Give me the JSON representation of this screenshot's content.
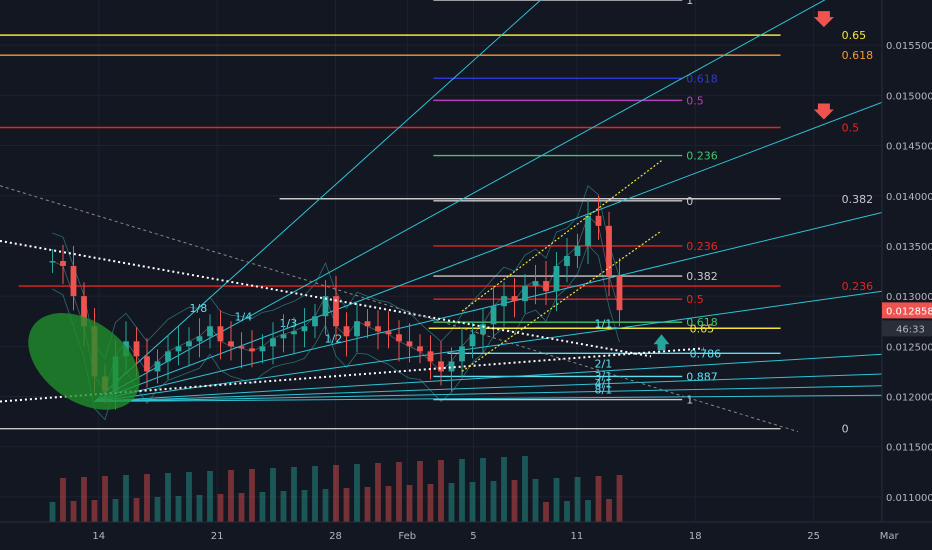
{
  "chart_data": {
    "type": "candlestick",
    "y_axis": {
      "range": [
        0.01075,
        0.01595
      ],
      "ticks": [
        "0.015500",
        "0.015000",
        "0.014500",
        "0.014000",
        "0.013500",
        "0.013000",
        "0.012500",
        "0.012000",
        "0.011500",
        "0.011000"
      ],
      "tick_values": [
        0.0155,
        0.015,
        0.0145,
        0.014,
        0.0135,
        0.013,
        0.0125,
        0.012,
        0.0115,
        0.011
      ]
    },
    "x_axis": {
      "ticks": [
        "14",
        "21",
        "28",
        "Feb",
        "5",
        "11",
        "18",
        "25",
        "Mar"
      ],
      "tick_positions": [
        0.106,
        0.233,
        0.36,
        0.437,
        0.508,
        0.619,
        0.746,
        0.873,
        0.954
      ]
    },
    "price_badge": {
      "value": "0.012858",
      "color": "#ef5350"
    },
    "countdown_badge": {
      "value": "46:33"
    },
    "candles": [
      {
        "d": 1,
        "c": 0.01335
      },
      {
        "d": 2,
        "c": 0.0133
      },
      {
        "d": 3,
        "c": 0.013
      },
      {
        "d": 4,
        "c": 0.0127
      },
      {
        "d": 5,
        "c": 0.0122
      },
      {
        "d": 6,
        "c": 0.01205
      },
      {
        "d": 7,
        "c": 0.0124
      },
      {
        "d": 8,
        "c": 0.01255
      },
      {
        "d": 9,
        "c": 0.0124
      },
      {
        "d": 10,
        "c": 0.01225
      },
      {
        "d": 11,
        "c": 0.01235
      },
      {
        "d": 12,
        "c": 0.01245
      },
      {
        "d": 13,
        "c": 0.0125
      },
      {
        "d": 14,
        "c": 0.01255
      },
      {
        "d": 15,
        "c": 0.0126
      },
      {
        "d": 16,
        "c": 0.0127
      },
      {
        "d": 17,
        "c": 0.01255
      },
      {
        "d": 18,
        "c": 0.0125
      },
      {
        "d": 19,
        "c": 0.01248
      },
      {
        "d": 20,
        "c": 0.01245
      },
      {
        "d": 21,
        "c": 0.0125
      },
      {
        "d": 22,
        "c": 0.01258
      },
      {
        "d": 23,
        "c": 0.01262
      },
      {
        "d": 24,
        "c": 0.01265
      },
      {
        "d": 25,
        "c": 0.0127
      },
      {
        "d": 26,
        "c": 0.0128
      },
      {
        "d": 27,
        "c": 0.013
      },
      {
        "d": 28,
        "c": 0.0127
      },
      {
        "d": 29,
        "c": 0.0126
      },
      {
        "d": 30,
        "c": 0.01275
      },
      {
        "d": 31,
        "c": 0.0127
      },
      {
        "d": 32,
        "c": 0.01265
      },
      {
        "d": 33,
        "c": 0.01262
      },
      {
        "d": 34,
        "c": 0.01255
      },
      {
        "d": 35,
        "c": 0.0125
      },
      {
        "d": 36,
        "c": 0.01245
      },
      {
        "d": 37,
        "c": 0.01235
      },
      {
        "d": 38,
        "c": 0.01225
      },
      {
        "d": 39,
        "c": 0.01235
      },
      {
        "d": 40,
        "c": 0.0125
      },
      {
        "d": 41,
        "c": 0.01262
      },
      {
        "d": 42,
        "c": 0.01272
      },
      {
        "d": 43,
        "c": 0.0129
      },
      {
        "d": 44,
        "c": 0.013
      },
      {
        "d": 45,
        "c": 0.01295
      },
      {
        "d": 46,
        "c": 0.0131
      },
      {
        "d": 47,
        "c": 0.01315
      },
      {
        "d": 48,
        "c": 0.01305
      },
      {
        "d": 49,
        "c": 0.0133
      },
      {
        "d": 50,
        "c": 0.0134
      },
      {
        "d": 51,
        "c": 0.0135
      },
      {
        "d": 52,
        "c": 0.0138
      },
      {
        "d": 53,
        "c": 0.0137
      },
      {
        "d": 54,
        "c": 0.0132
      },
      {
        "d": 55,
        "c": 0.01286
      }
    ],
    "x_domain": [
      -4,
      80
    ],
    "fib_outer": [
      {
        "label": "0.65",
        "value": 0.0156,
        "color": "#f5e53a",
        "x_start": 0,
        "label_x": 0.903
      },
      {
        "label": "0.618",
        "value": 0.0154,
        "color": "#f39a35",
        "x_start": 0,
        "label_x": 0.903
      },
      {
        "label": "0.5",
        "value": 0.01468,
        "color": "#e52521",
        "x_start": 0,
        "label_x": 0.903
      },
      {
        "label": "0.236",
        "value": 0.0131,
        "color": "#e52521",
        "x_start": 0.02,
        "label_x": 0.903
      },
      {
        "label": "0.382",
        "value": 0.01397,
        "color": "#c9c9c9",
        "x_start": 0.3,
        "label_x": 0.903
      },
      {
        "label": "0.65",
        "value": 0.01268,
        "color": "#f5e53a",
        "x_start": 0.46,
        "label_x": 0.74
      },
      {
        "label": "0.786",
        "value": 0.01243,
        "color": "#5ce0f0",
        "x_start": 0.48,
        "label_x": 0.74
      },
      {
        "label": "0",
        "value": 0.01168,
        "color": "#c9c9c9",
        "x_start": 0,
        "label_x": 0.903
      }
    ],
    "fib_inner": [
      {
        "label": "1",
        "value": 0.01595,
        "color": "#c9c9c9"
      },
      {
        "label": "0.618",
        "value": 0.01517,
        "color": "#2f3ad6"
      },
      {
        "label": "0.5",
        "value": 0.01495,
        "color": "#b640b8"
      },
      {
        "label": "0.236",
        "value": 0.0144,
        "color": "#45c46a"
      },
      {
        "label": "0",
        "value": 0.01395,
        "color": "#c9c9c9"
      },
      {
        "label": "0.236",
        "value": 0.0135,
        "color": "#e52521"
      },
      {
        "label": "0.382",
        "value": 0.0132,
        "color": "#c9c9c9"
      },
      {
        "label": "0.5",
        "value": 0.01297,
        "color": "#e52521"
      },
      {
        "label": "0.618",
        "value": 0.01274,
        "color": "#45c46a"
      },
      {
        "label": "0.887",
        "value": 0.0122,
        "color": "#5ce0f0"
      },
      {
        "label": "1",
        "value": 0.01197,
        "color": "#c9c9c9"
      }
    ],
    "gann_labels": [
      "1/8",
      "1/4",
      "1/3",
      "1/2",
      "1/1",
      "2/1",
      "3/1",
      "4/1",
      "8/1"
    ]
  }
}
